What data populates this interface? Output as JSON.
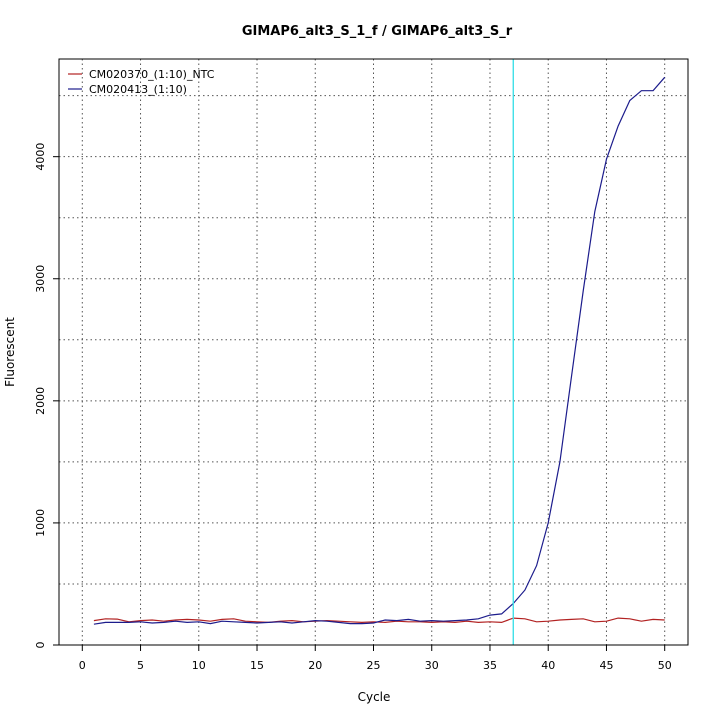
{
  "chart_data": {
    "type": "line",
    "title": "GIMAP6_alt3_S_1_f / GIMAP6_alt3_S_r",
    "xlabel": "Cycle",
    "ylabel": "Fluorescent",
    "xlim": [
      -2,
      52
    ],
    "ylim": [
      0,
      4800
    ],
    "x_ticks": [
      0,
      5,
      10,
      15,
      20,
      25,
      30,
      35,
      40,
      45,
      50
    ],
    "x_tick_labels": [
      "0",
      "5",
      "10",
      "15",
      "20",
      "25",
      "30",
      "35",
      "40",
      "45",
      "50"
    ],
    "y_ticks": [
      0,
      1000,
      2000,
      3000,
      4000
    ],
    "y_tick_labels": [
      "0",
      "1000",
      "2000",
      "3000",
      "4000"
    ],
    "grid": true,
    "legend_position": "top-left",
    "threshold_cycle": 37,
    "threshold_color": "#40e0e8",
    "x": [
      1,
      2,
      3,
      4,
      5,
      6,
      7,
      8,
      9,
      10,
      11,
      12,
      13,
      14,
      15,
      16,
      17,
      18,
      19,
      20,
      21,
      22,
      23,
      24,
      25,
      26,
      27,
      28,
      29,
      30,
      31,
      32,
      33,
      34,
      35,
      36,
      37,
      38,
      39,
      40,
      41,
      42,
      43,
      44,
      45,
      46,
      47,
      48,
      49,
      50
    ],
    "series": [
      {
        "name": "CM020370_(1:10)_NTC",
        "color": "#b22222",
        "values": [
          200,
          215,
          212,
          190,
          200,
          205,
          195,
          205,
          210,
          205,
          195,
          210,
          215,
          195,
          190,
          185,
          195,
          200,
          190,
          195,
          200,
          195,
          190,
          185,
          190,
          185,
          195,
          190,
          190,
          185,
          190,
          185,
          195,
          185,
          190,
          185,
          220,
          215,
          190,
          195,
          205,
          210,
          215,
          190,
          195,
          220,
          215,
          195,
          210,
          205
        ]
      },
      {
        "name": "CM020413_(1:10)",
        "color": "#1c1c8c",
        "values": [
          170,
          185,
          185,
          185,
          190,
          180,
          185,
          195,
          185,
          190,
          175,
          195,
          190,
          185,
          180,
          185,
          190,
          180,
          190,
          200,
          195,
          185,
          175,
          175,
          180,
          205,
          200,
          210,
          195,
          200,
          195,
          200,
          205,
          215,
          245,
          255,
          340,
          450,
          650,
          1000,
          1500,
          2200,
          2900,
          3550,
          3980,
          4250,
          4460,
          4540,
          4540,
          4650
        ]
      }
    ]
  }
}
